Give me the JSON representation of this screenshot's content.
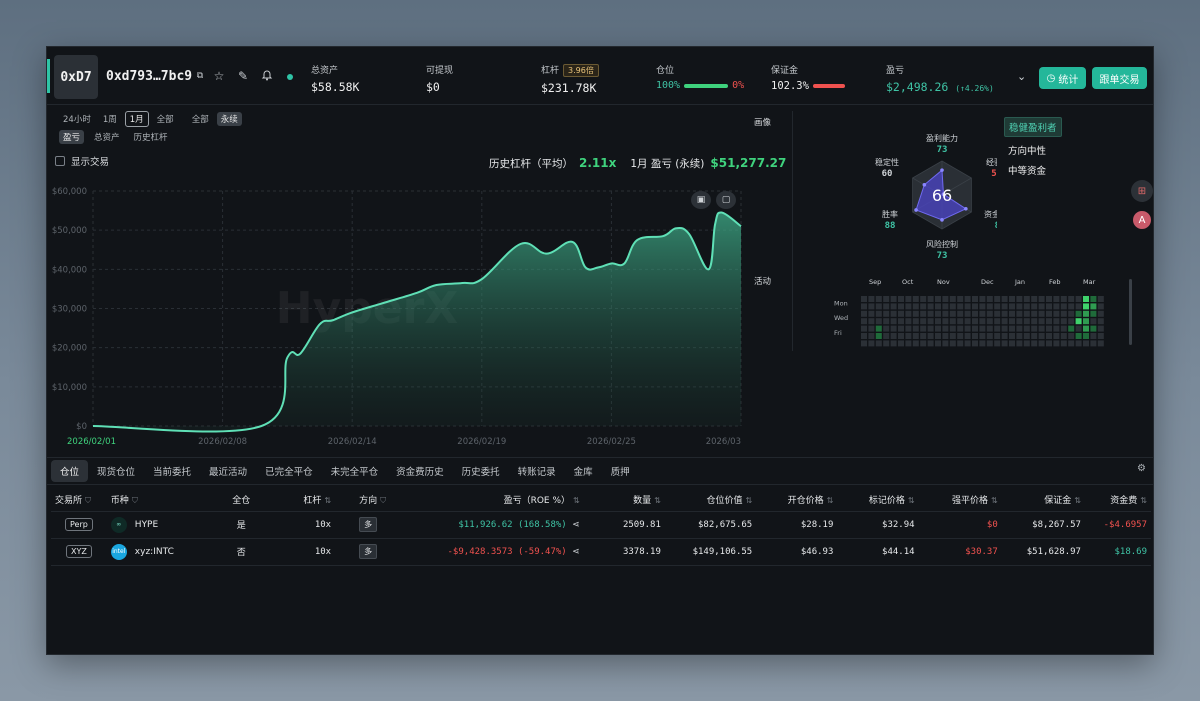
{
  "header": {
    "avatar_text": "0xD7",
    "address": "0xd793…7bc9",
    "stats": [
      {
        "label": "总资产",
        "value": "$58.58K"
      },
      {
        "label": "可提现",
        "value": "$0"
      },
      {
        "label": "杠杆",
        "value": "$231.78K",
        "badge": "3.96倍"
      },
      {
        "label": "仓位",
        "pct_a": "100%",
        "pct_b": "0%",
        "fill": 1.0
      },
      {
        "label": "保证金",
        "value": "102.3%",
        "fill": 1.0
      },
      {
        "label": "盈亏",
        "value": "$2,498.26",
        "change": "(↑4.26%)"
      }
    ],
    "stats_button": "统计",
    "copy_button": "跟单交易",
    "colors": {
      "accent": "#24b79a",
      "green": "#3fd27d",
      "red": "#f0524f"
    }
  },
  "filters": {
    "range": [
      "24小时",
      "1周",
      "1月",
      "全部"
    ],
    "range_active": "1月",
    "market": [
      "全部",
      "永续"
    ],
    "market_active": "永续",
    "metric": [
      "盈亏",
      "总资产",
      "历史杠杆"
    ],
    "metric_active": "盈亏",
    "show_trades": "显示交易"
  },
  "summary": {
    "leverage_label": "历史杠杆（平均）",
    "leverage_value": "2.11x",
    "pnl_label": "1月 盈亏 (永续)",
    "pnl_value": "$51,277.27"
  },
  "chart_data": {
    "type": "area",
    "watermark": "HyperX",
    "ylim": [
      0,
      60000
    ],
    "y_ticks": [
      0,
      10000,
      20000,
      30000,
      40000,
      50000,
      60000
    ],
    "y_tick_labels": [
      "$0",
      "$10,000",
      "$20,000",
      "$30,000",
      "$40,000",
      "$50,000",
      "$60,000"
    ],
    "x_tick_labels": [
      "2026/02/01",
      "2026/02/08",
      "2026/02/14",
      "2026/02/19",
      "2026/02/25",
      "2026/03"
    ],
    "x": [
      0,
      0.26,
      0.3,
      0.32,
      0.35,
      0.37,
      0.4,
      0.45,
      0.5,
      0.53,
      0.57,
      0.6,
      0.66,
      0.7,
      0.74,
      0.76,
      0.78,
      0.8,
      0.82,
      0.84,
      0.88,
      0.9,
      0.92,
      0.95,
      0.96,
      0.97,
      1.0
    ],
    "values": [
      0,
      0,
      17500,
      18500,
      26000,
      27000,
      29000,
      31500,
      34000,
      36000,
      36500,
      37500,
      46500,
      44000,
      47000,
      40500,
      40500,
      41500,
      41500,
      47500,
      48500,
      50500,
      49000,
      40000,
      51500,
      54500,
      51000
    ],
    "grid": true
  },
  "profile": {
    "label": "画像",
    "score": "66",
    "axes": [
      {
        "name": "盈利能力",
        "value": 73
      },
      {
        "name": "经验",
        "value": 5
      },
      {
        "name": "资金效率",
        "value": 81
      },
      {
        "name": "风险控制",
        "value": 73
      },
      {
        "name": "胜率",
        "value": 88
      },
      {
        "name": "稳定性",
        "value": 60
      }
    ],
    "tags": [
      "稳健盈利者",
      "方向中性",
      "中等资金"
    ]
  },
  "activity": {
    "label": "活动",
    "months": [
      "Sep",
      "Oct",
      "Nov",
      "Dec",
      "Jan",
      "Feb",
      "Mar"
    ],
    "days": [
      "Mon",
      "Wed",
      "Fri"
    ]
  },
  "tabs": [
    "仓位",
    "现货仓位",
    "当前委托",
    "最近活动",
    "已完全平仓",
    "未完全平仓",
    "资金费历史",
    "历史委托",
    "转账记录",
    "金库",
    "质押"
  ],
  "tab_active": "仓位",
  "table": {
    "headers": [
      "交易所",
      "币种",
      "全仓",
      "杠杆",
      "方向",
      "盈亏（ROE %）",
      "数量",
      "仓位价值",
      "开仓价格",
      "标记价格",
      "强平价格",
      "保证金",
      "资金费"
    ],
    "rows": [
      {
        "exchange": "Perp",
        "coin": "HYPE",
        "cross": "是",
        "leverage": "10x",
        "side": "多",
        "pnl": "$11,926.62 (168.58%)",
        "qty": "2509.81",
        "value": "$82,675.65",
        "entry": "$28.19",
        "mark": "$32.94",
        "liq": "$0",
        "margin": "$8,267.57",
        "funding": "-$4.6957"
      },
      {
        "exchange": "XYZ",
        "coin": "xyz:INTC",
        "cross": "否",
        "leverage": "10x",
        "side": "多",
        "pnl": "-$9,428.3573 (-59.47%)",
        "qty": "3378.19",
        "value": "$149,106.55",
        "entry": "$46.93",
        "mark": "$44.14",
        "liq": "$30.37",
        "margin": "$51,628.97",
        "funding": "$18.69"
      }
    ]
  }
}
